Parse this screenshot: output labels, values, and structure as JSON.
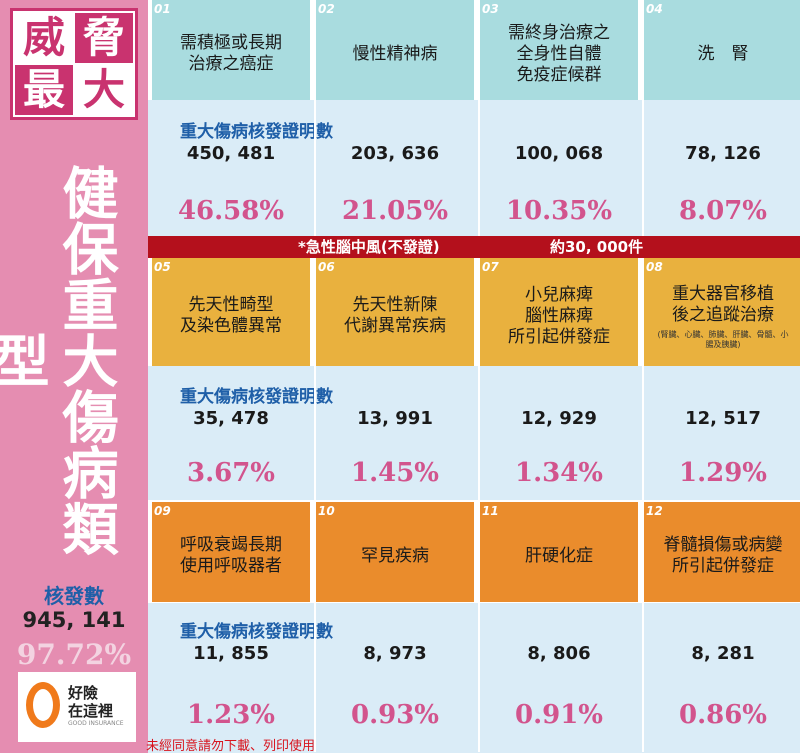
{
  "sidebar": {
    "threat_chars": [
      "威",
      "脅",
      "最",
      "大"
    ],
    "title": "健保重大傷病類型",
    "count_label": "核發數",
    "count": "945, 141",
    "percent": "97.72%",
    "logo": {
      "line1": "好險",
      "line2": "在這裡",
      "line3": "GOOD INSURANCE"
    }
  },
  "colors": {
    "row1": "#a9dcdf",
    "row2": "#e9b13e",
    "row3": "#ea8c2c",
    "accent": "#c9336f",
    "bar": "#b4101c"
  },
  "count_label": "重大傷病核發證明數",
  "rows": [
    {
      "items": [
        {
          "num": "01",
          "name": [
            "需積極或長期",
            "治療之癌症"
          ],
          "count": "450, 481",
          "pct": "46.58%"
        },
        {
          "num": "02",
          "name": [
            "慢性精神病"
          ],
          "count": "203, 636",
          "pct": "21.05%"
        },
        {
          "num": "03",
          "name": [
            "需終身治療之",
            "全身性自體",
            "免疫症候群"
          ],
          "count": "100, 068",
          "pct": "10.35%"
        },
        {
          "num": "04",
          "name": [
            "洗　腎"
          ],
          "count": "78, 126",
          "pct": "8.07%"
        }
      ]
    },
    {
      "items": [
        {
          "num": "05",
          "name": [
            "先天性畸型",
            "及染色體異常"
          ],
          "count": "35, 478",
          "pct": "3.67%"
        },
        {
          "num": "06",
          "name": [
            "先天性新陳",
            "代謝異常疾病"
          ],
          "count": "13, 991",
          "pct": "1.45%"
        },
        {
          "num": "07",
          "name": [
            "小兒麻痺",
            "腦性麻痺",
            "所引起併發症"
          ],
          "count": "12, 929",
          "pct": "1.34%"
        },
        {
          "num": "08",
          "name": [
            "重大器官移植",
            "後之追蹤治療"
          ],
          "note": "(腎臟、心臟、肺臟、肝臟、骨髓、小腸及胰臟)",
          "count": "12, 517",
          "pct": "1.29%"
        }
      ]
    },
    {
      "items": [
        {
          "num": "09",
          "name": [
            "呼吸衰竭長期",
            "使用呼吸器者"
          ],
          "count": "11, 855",
          "pct": "1.23%"
        },
        {
          "num": "10",
          "name": [
            "罕見疾病"
          ],
          "count": "8, 973",
          "pct": "0.93%"
        },
        {
          "num": "11",
          "name": [
            "肝硬化症"
          ],
          "count": "8, 806",
          "pct": "0.91%"
        },
        {
          "num": "12",
          "name": [
            "脊髓損傷或病變",
            "所引起併發症"
          ],
          "count": "8, 281",
          "pct": "0.86%"
        }
      ]
    }
  ],
  "redbar": {
    "label": "*急性腦中風(不發證)",
    "value": "約30, 000件"
  },
  "footnote": "未經同意請勿下載、列印使用"
}
